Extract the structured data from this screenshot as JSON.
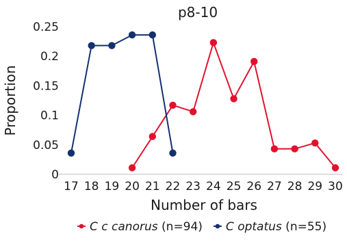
{
  "chart_data": {
    "type": "line",
    "title": "p8-10",
    "xlabel": "Number of bars",
    "ylabel": "Proportion",
    "xlim": [
      17,
      30
    ],
    "ylim": [
      0,
      0.25
    ],
    "x_ticks": [
      "17",
      "18",
      "19",
      "20",
      "21",
      "22",
      "23",
      "24",
      "25",
      "26",
      "27",
      "28",
      "29",
      "30"
    ],
    "y_ticks": [
      "0",
      "0.05",
      "0.1",
      "0.15",
      "0.2",
      "0.25"
    ],
    "grid": false,
    "legend_position": "bottom",
    "series": [
      {
        "name_italic": "C c canorus",
        "name_suffix": " (n=94)",
        "color": "#e0122d",
        "x": [
          20,
          21,
          22,
          23,
          24,
          25,
          26,
          27,
          28,
          29,
          30
        ],
        "values": [
          0.011,
          0.064,
          0.117,
          0.106,
          0.223,
          0.128,
          0.191,
          0.043,
          0.043,
          0.053,
          0.011
        ]
      },
      {
        "name_italic": "C optatus",
        "name_suffix": " (n=55)",
        "color": "#14306e",
        "x": [
          17,
          18,
          19,
          20,
          21,
          22
        ],
        "values": [
          0.036,
          0.218,
          0.218,
          0.236,
          0.236,
          0.036
        ]
      }
    ]
  }
}
